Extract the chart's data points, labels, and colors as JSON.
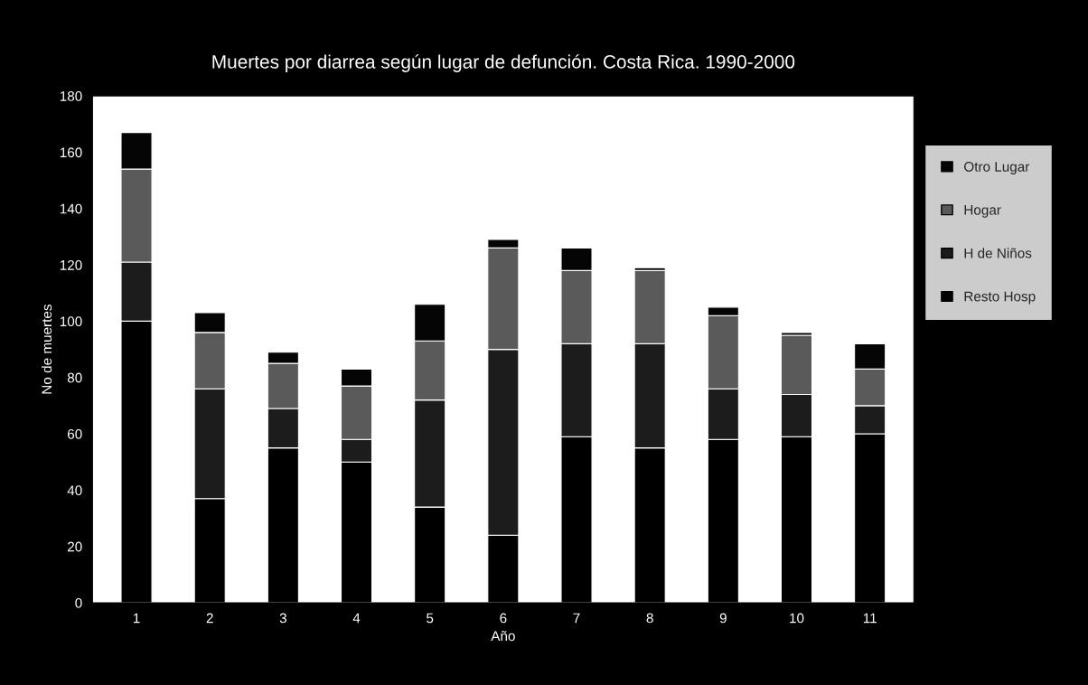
{
  "chart_data": {
    "type": "bar",
    "stacked": true,
    "title": "Muertes por diarrea según lugar de defunción. Costa Rica. 1990-2000",
    "xlabel": "Año",
    "ylabel": "No de muertes",
    "categories": [
      "1",
      "2",
      "3",
      "4",
      "5",
      "6",
      "7",
      "8",
      "9",
      "10",
      "11"
    ],
    "series": [
      {
        "name": "Resto Hosp",
        "color": "#000000",
        "values": [
          100,
          37,
          55,
          50,
          34,
          24,
          59,
          55,
          58,
          59,
          60
        ]
      },
      {
        "name": "H de Niños",
        "color": "#1c1c1c",
        "values": [
          21,
          39,
          14,
          8,
          38,
          66,
          33,
          37,
          18,
          15,
          10
        ]
      },
      {
        "name": "Hogar",
        "color": "#5a5a5a",
        "values": [
          33,
          20,
          16,
          19,
          21,
          36,
          26,
          26,
          26,
          21,
          13
        ]
      },
      {
        "name": "Otro Lugar",
        "color": "#050505",
        "values": [
          13,
          7,
          4,
          6,
          13,
          3,
          8,
          1,
          3,
          1,
          9
        ]
      }
    ],
    "ylim": [
      0,
      180
    ],
    "yticks": [
      0,
      20,
      40,
      60,
      80,
      100,
      120,
      140,
      160,
      180
    ],
    "grid": false,
    "legend": "right"
  }
}
